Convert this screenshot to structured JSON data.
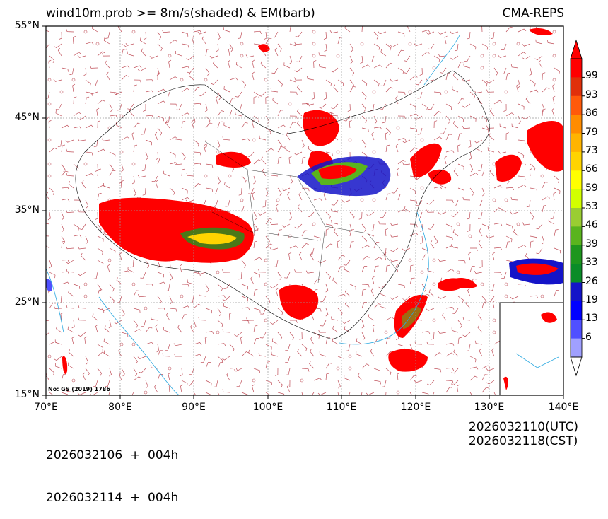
{
  "title_left": "wind10m.prob >= 8m/s(shaded) & EM(barb)",
  "title_right": "CMA-REPS",
  "lat_labels": [
    "55°N",
    "45°N",
    "35°N",
    "25°N",
    "15°N"
  ],
  "lon_labels": [
    "70°E",
    "80°E",
    "90°E",
    "100°E",
    "110°E",
    "120°E",
    "130°E",
    "140°E"
  ],
  "colorbar": {
    "labels": [
      "99",
      "93",
      "86",
      "79",
      "73",
      "66",
      "59",
      "53",
      "46",
      "39",
      "33",
      "26",
      "19",
      "13",
      "6"
    ],
    "colors": [
      "#ff0000",
      "#e0300a",
      "#ff5a0a",
      "#ff8c00",
      "#ffb400",
      "#ffd400",
      "#ffff00",
      "#d2ff00",
      "#9acd32",
      "#5ab41e",
      "#1e961e",
      "#0a8c28",
      "#1414c8",
      "#0000ff",
      "#5050ff",
      "#a0a0ff"
    ]
  },
  "footer": {
    "init_utc": "2026032106  +  004h",
    "init_cst": "2026032114  +  004h",
    "valid_utc": "2026032110(UTC)",
    "valid_cst": "2026032118(CST)"
  },
  "map_note": "No: GS (2019) 1786"
}
